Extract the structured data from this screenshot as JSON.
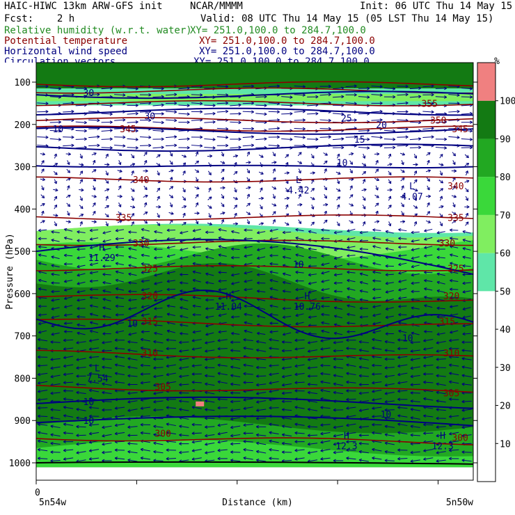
{
  "header": {
    "model": "HAIC-HIWC 13km ARW-GFS init",
    "org": "NCAR/MMMM",
    "init": "Init: 06 UTC Thu 14 May 15",
    "fcst": "Fcst:    2 h",
    "valid": "Valid: 08 UTC Thu 14 May 15 (05 LST Thu 14 May 15)"
  },
  "fields": [
    {
      "label": "Relative humidity (w.r.t. water)",
      "xy": "XY= 251.0,100.0 to 284.7,100.0",
      "color": "#228b22"
    },
    {
      "label": "Potential temperature",
      "xy": "XY= 251.0,100.0 to 284.7,100.0",
      "color": "#8b0000"
    },
    {
      "label": "Horizontal wind speed",
      "xy": "XY= 251.0,100.0 to 284.7,100.0",
      "color": "#000080"
    },
    {
      "label": "Circulation vectors",
      "xy": "XY= 251.0,100.0 to 284.7,100.0",
      "color": "#000080"
    }
  ],
  "chart_data": {
    "type": "heatmap",
    "xlabel": "Distance (km)",
    "ylabel": "Pressure (hPa)",
    "x_start_label": "0",
    "x_left_label": "5n54w",
    "x_right_label": "5n50w",
    "y_ticks": [
      100,
      200,
      300,
      400,
      500,
      600,
      700,
      800,
      900,
      1000
    ],
    "colorbar": {
      "unit": "%",
      "ticks": [
        10,
        20,
        30,
        40,
        50,
        60,
        70,
        80,
        90,
        100
      ],
      "bands": [
        {
          "from": 0,
          "to": 50,
          "color": "#ffffff"
        },
        {
          "from": 50,
          "to": 60,
          "color": "#5fe6a8"
        },
        {
          "from": 60,
          "to": 70,
          "color": "#80ee60"
        },
        {
          "from": 70,
          "to": 80,
          "color": "#3ad83a"
        },
        {
          "from": 80,
          "to": 90,
          "color": "#22a822"
        },
        {
          "from": 90,
          "to": 100,
          "color": "#137a13"
        },
        {
          "from": 100,
          "to": 110,
          "color": "#f08080"
        }
      ]
    },
    "theta_labels": [
      {
        "text": "345",
        "p": 210,
        "x": 0.21
      },
      {
        "text": "345",
        "p": 210,
        "x": 0.97
      },
      {
        "text": "340",
        "p": 330,
        "x": 0.24
      },
      {
        "text": "340",
        "p": 345,
        "x": 0.96
      },
      {
        "text": "335",
        "p": 420,
        "x": 0.2
      },
      {
        "text": "335",
        "p": 420,
        "x": 0.96
      },
      {
        "text": "330",
        "p": 480,
        "x": 0.24
      },
      {
        "text": "330",
        "p": 480,
        "x": 0.94
      },
      {
        "text": "325",
        "p": 540,
        "x": 0.26
      },
      {
        "text": "325",
        "p": 540,
        "x": 0.96
      },
      {
        "text": "320",
        "p": 605,
        "x": 0.26
      },
      {
        "text": "320",
        "p": 605,
        "x": 0.95
      },
      {
        "text": "315",
        "p": 665,
        "x": 0.26
      },
      {
        "text": "315",
        "p": 665,
        "x": 0.94
      },
      {
        "text": "310",
        "p": 740,
        "x": 0.26
      },
      {
        "text": "310",
        "p": 740,
        "x": 0.95
      },
      {
        "text": "305",
        "p": 820,
        "x": 0.29
      },
      {
        "text": "305",
        "p": 835,
        "x": 0.95
      },
      {
        "text": "300",
        "p": 930,
        "x": 0.29
      },
      {
        "text": "300",
        "p": 940,
        "x": 0.97
      },
      {
        "text": "355",
        "p": 150,
        "x": 0.9
      },
      {
        "text": "350",
        "p": 190,
        "x": 0.92
      }
    ],
    "wind_labels": [
      {
        "text": "30",
        "p": 125,
        "x": 0.12
      },
      {
        "text": "30",
        "p": 180,
        "x": 0.26
      },
      {
        "text": "25",
        "p": 185,
        "x": 0.71
      },
      {
        "text": "20",
        "p": 200,
        "x": 0.79
      },
      {
        "text": "15",
        "p": 235,
        "x": 0.74
      },
      {
        "text": "10",
        "p": 210,
        "x": 0.05
      },
      {
        "text": "10",
        "p": 290,
        "x": 0.7
      },
      {
        "text": "10",
        "p": 530,
        "x": 0.6
      },
      {
        "text": "10",
        "p": 670,
        "x": 0.22
      },
      {
        "text": "10",
        "p": 705,
        "x": 0.85
      },
      {
        "text": "10",
        "p": 855,
        "x": 0.12
      },
      {
        "text": "10",
        "p": 900,
        "x": 0.12
      },
      {
        "text": "10",
        "p": 885,
        "x": 0.8
      }
    ],
    "extrema": [
      {
        "kind": "L",
        "value": "4.42",
        "p": 345,
        "x": 0.6
      },
      {
        "kind": "L",
        "value": "4.07",
        "p": 360,
        "x": 0.86
      },
      {
        "kind": "H",
        "value": "11.29",
        "p": 505,
        "x": 0.15
      },
      {
        "kind": "H",
        "value": "11.04",
        "p": 620,
        "x": 0.44
      },
      {
        "kind": "H",
        "value": "10.76",
        "p": 620,
        "x": 0.62
      },
      {
        "kind": "L",
        "value": "7.54",
        "p": 790,
        "x": 0.14
      },
      {
        "kind": "H",
        "value": "12.3",
        "p": 950,
        "x": 0.71
      },
      {
        "kind": "H",
        "value": "12.3",
        "p": 950,
        "x": 0.93
      }
    ]
  }
}
